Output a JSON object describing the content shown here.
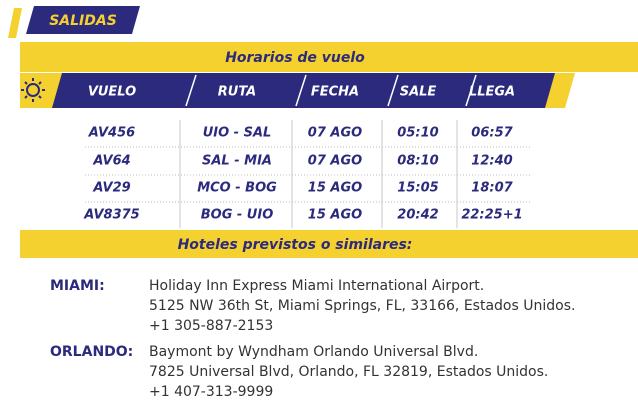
{
  "header": {
    "tab": "SALIDAS",
    "section": "Horarios de vuelo"
  },
  "table": {
    "columns": [
      "VUELO",
      "RUTA",
      "FECHA",
      "SALE",
      "LLEGA"
    ],
    "rows": [
      [
        "AV456",
        "UIO - SAL",
        "07 AGO",
        "05:10",
        "06:57"
      ],
      [
        "AV64",
        "SAL - MIA",
        "07 AGO",
        "08:10",
        "12:40"
      ],
      [
        "AV29",
        "MCO - BOG",
        "15 AGO",
        "15:05",
        "18:07"
      ],
      [
        "AV8375",
        "BOG - UIO",
        "15 AGO",
        "20:42",
        "22:25+1"
      ]
    ]
  },
  "hotels": {
    "title": "Hoteles previstos o similares:",
    "items": [
      {
        "city": "MIAMI:",
        "lines": [
          "Holiday Inn Express Miami International Airport.",
          "5125 NW 36th St, Miami Springs, FL, 33166, Estados Unidos.",
          "+1 305-887-2153"
        ]
      },
      {
        "city": "ORLANDO:",
        "lines": [
          "Baymont by Wyndham Orlando Universal Blvd.",
          "7825 Universal Blvd, Orlando, FL 32819, Estados Unidos.",
          "+1 407-313-9999"
        ]
      }
    ]
  }
}
